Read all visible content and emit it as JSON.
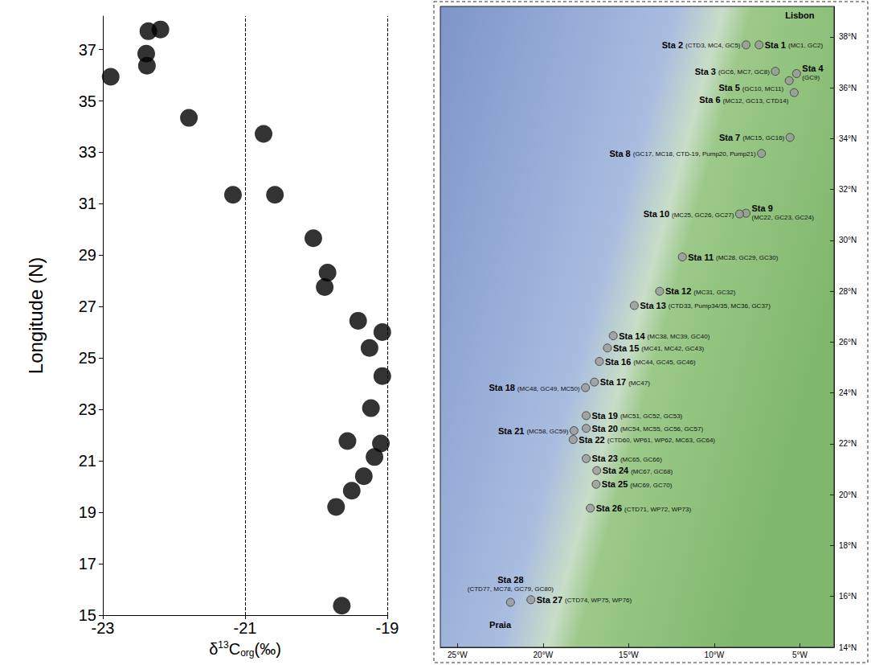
{
  "chart_data": [
    {
      "type": "scatter",
      "x_label": "δ13Corg(‰)",
      "y_label": "Longitude (N)",
      "x": [
        -22.36,
        -22.19,
        -22.39,
        -22.38,
        -22.89,
        -21.79,
        -20.74,
        -21.17,
        -20.58,
        -20.04,
        -19.84,
        -19.88,
        -19.41,
        -19.07,
        -19.25,
        -19.07,
        -19.23,
        -19.56,
        -19.09,
        -19.18,
        -19.33,
        -19.5,
        -19.72,
        -19.64
      ],
      "y": [
        37.71,
        37.78,
        36.84,
        36.37,
        35.94,
        34.34,
        33.72,
        31.35,
        31.35,
        29.66,
        28.32,
        27.76,
        26.45,
        26.01,
        25.39,
        24.3,
        23.05,
        21.77,
        21.68,
        21.15,
        20.4,
        19.84,
        19.21,
        15.37
      ],
      "xlim": [
        -23,
        -19
      ],
      "ylim": [
        15,
        38.3
      ],
      "xticks": [
        -23,
        -21,
        -19
      ],
      "yticks": [
        15,
        17,
        19,
        21,
        23,
        25,
        27,
        29,
        31,
        33,
        35,
        37
      ],
      "color": "#000000",
      "marker": "circle",
      "grid": "x"
    },
    {
      "type": "map",
      "labels": [
        "Sta 1",
        "Sta 2",
        "Sta 3",
        "Sta 4",
        "Sta 5",
        "Sta 6",
        "Sta 7",
        "Sta 8",
        "Sta 9",
        "Sta 10",
        "Sta 11",
        "Sta 12",
        "Sta 13",
        "Sta 14",
        "Sta 15",
        "Sta 16",
        "Sta 17",
        "Sta 18",
        "Sta 19",
        "Sta 20",
        "Sta 21",
        "Sta 22",
        "Sta 23",
        "Sta 24",
        "Sta 25",
        "Sta 26",
        "Sta 27",
        "Sta 28"
      ],
      "notes": [
        "(MC1, GC2)",
        "(CTD3, MC4, GC5)",
        "(GC6, MC7, GC8)",
        "(GC9)",
        "(GC10, MC11)",
        "(MC12, GC13, CTD14)",
        "(MC15, GC16)",
        "(GC17, MC18, CTD-19, Pump20, Pump21)",
        "(MC22, GC23, GC24)",
        "(MC25, GC26, GC27)",
        "(MC28, GC29, GC30)",
        "(MC31, GC32)",
        "(CTD33, Pump34/35, MC36, GC37)",
        "(MC38, MC39, GC40)",
        "(MC41, MC42, GC43)",
        "(MC44, GC45, GC46)",
        "(MC47)",
        "(MC48, GC49, MC50)",
        "(MC51, GC52, GC53)",
        "(MC54, MC55, GC56, GC57)",
        "(MC58, GC59)",
        "(CTD60, WP61, WP62, MC63, GC64)",
        "(MC65, GC66)",
        "(MC67, GC68)",
        "(MC69, GC70)",
        "(CTD71, WP72, WP73)",
        "(CTD74, WP75, WP76)",
        "(CTD77, MC78, GC79, GC80)"
      ],
      "x": [
        -7.38,
        -8.14,
        -6.43,
        -5.19,
        -5.62,
        -5.33,
        -5.57,
        -7.24,
        -8.14,
        -8.52,
        -11.86,
        -13.19,
        -14.67,
        -15.9,
        -16.24,
        -16.71,
        -17.0,
        -17.52,
        -17.48,
        -17.48,
        -18.19,
        -18.24,
        -17.48,
        -16.86,
        -16.9,
        -17.24,
        -20.71,
        -21.9
      ],
      "y": [
        37.69,
        37.69,
        36.65,
        36.56,
        36.28,
        35.81,
        34.05,
        33.42,
        31.07,
        31.04,
        29.35,
        28.0,
        27.44,
        26.25,
        25.77,
        25.24,
        24.43,
        24.21,
        23.11,
        22.61,
        22.52,
        22.17,
        21.42,
        20.95,
        20.41,
        19.47,
        15.87,
        15.77
      ],
      "annotations": [
        {
          "text": "Lisbon",
          "x": -5,
          "y": 38.85
        },
        {
          "text": "Praia",
          "x": -22.5,
          "y": 14.9
        }
      ],
      "xlim": [
        -26,
        -3
      ],
      "ylim": [
        14,
        39.2
      ],
      "xticks": [
        {
          "value": -25,
          "label": "25°W"
        },
        {
          "value": -20,
          "label": "20°W"
        },
        {
          "value": -15,
          "label": "15°W"
        },
        {
          "value": -10,
          "label": "10°W"
        },
        {
          "value": -5,
          "label": "5°W"
        }
      ],
      "yticks": [
        {
          "value": 14,
          "label": "14°N"
        },
        {
          "value": 16,
          "label": "16°N"
        },
        {
          "value": 18,
          "label": "18°N"
        },
        {
          "value": 20,
          "label": "20°N"
        },
        {
          "value": 22,
          "label": "22°N"
        },
        {
          "value": 24,
          "label": "24°N"
        },
        {
          "value": 26,
          "label": "26°N"
        },
        {
          "value": 28,
          "label": "28°N"
        },
        {
          "value": 30,
          "label": "30°N"
        },
        {
          "value": 32,
          "label": "32°N"
        },
        {
          "value": 34,
          "label": "34°N"
        },
        {
          "value": 36,
          "label": "36°N"
        },
        {
          "value": 38,
          "label": "38°N"
        }
      ],
      "color": "#9a9a9a",
      "marker": "circle"
    }
  ]
}
